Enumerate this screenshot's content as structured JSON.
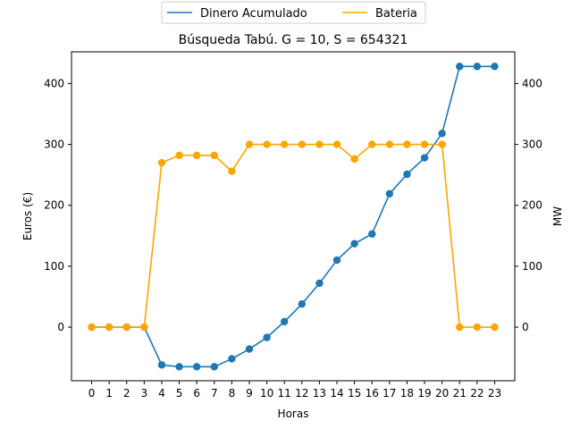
{
  "chart_data": {
    "type": "line",
    "title": "Búsqueda Tabú. G = 10, S = 654321",
    "xlabel": "Horas",
    "ylabel_left": "Euros (€)",
    "ylabel_right": "MW",
    "x": [
      0,
      1,
      2,
      3,
      4,
      5,
      6,
      7,
      8,
      9,
      10,
      11,
      12,
      13,
      14,
      15,
      16,
      17,
      18,
      19,
      20,
      21,
      22,
      23
    ],
    "ylim": [
      -88,
      452
    ],
    "yticks": [
      0,
      100,
      200,
      300,
      400
    ],
    "legend_position": "top-center",
    "series": [
      {
        "name": "Dinero Acumulado",
        "axis": "left",
        "color": "#1f77b4",
        "values": [
          0,
          0,
          0,
          0,
          -62,
          -65,
          -65,
          -65,
          -52,
          -36,
          -17,
          9,
          38,
          72,
          110,
          137,
          153,
          219,
          251,
          278,
          318,
          428,
          428,
          428
        ]
      },
      {
        "name": "Bateria",
        "axis": "right",
        "color": "#ffa500",
        "values": [
          0,
          0,
          0,
          0,
          270,
          282,
          282,
          282,
          256,
          300,
          300,
          300,
          300,
          300,
          300,
          276,
          300,
          300,
          300,
          300,
          300,
          0,
          0,
          0
        ]
      }
    ]
  }
}
